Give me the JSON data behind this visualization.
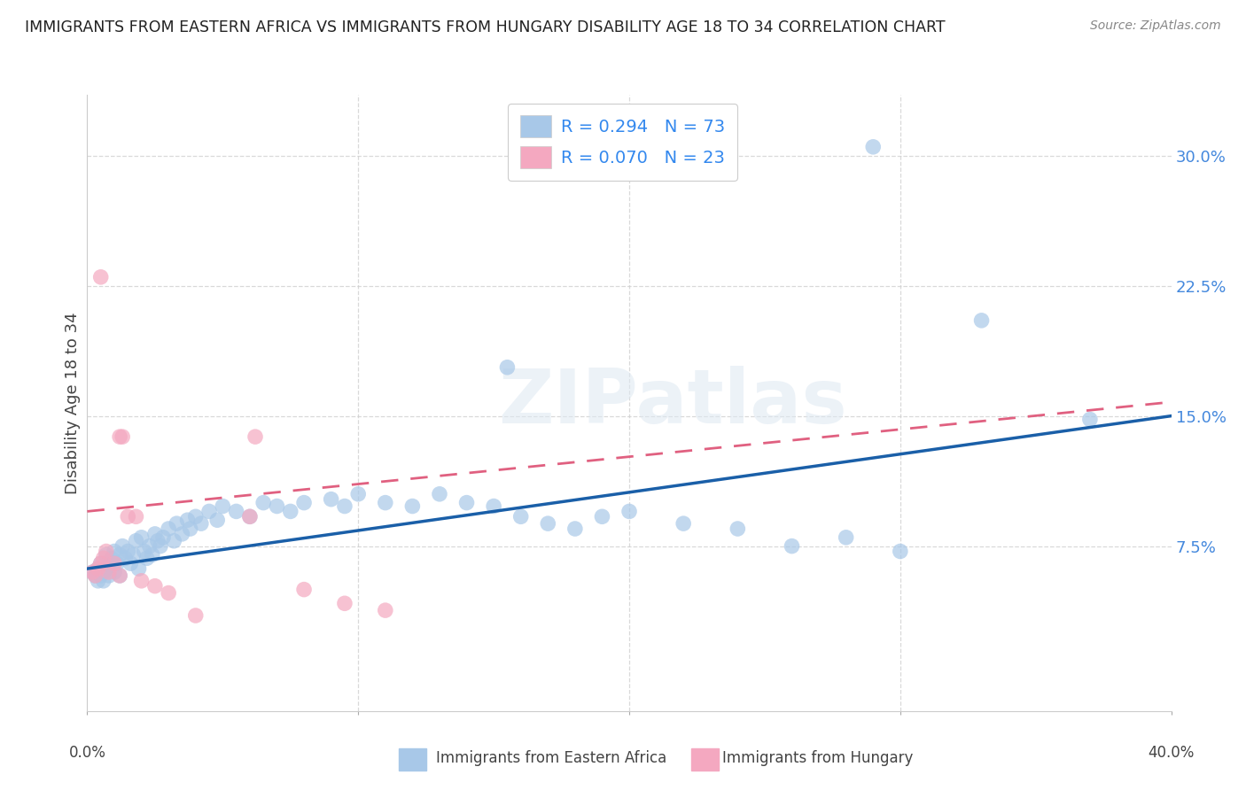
{
  "title": "IMMIGRANTS FROM EASTERN AFRICA VS IMMIGRANTS FROM HUNGARY DISABILITY AGE 18 TO 34 CORRELATION CHART",
  "source": "Source: ZipAtlas.com",
  "ylabel": "Disability Age 18 to 34",
  "ytick_labels": [
    "7.5%",
    "15.0%",
    "22.5%",
    "30.0%"
  ],
  "ytick_values": [
    0.075,
    0.15,
    0.225,
    0.3
  ],
  "xlim": [
    0.0,
    0.4
  ],
  "ylim": [
    -0.02,
    0.335
  ],
  "legend_blue_R": "R = 0.294",
  "legend_blue_N": "N = 73",
  "legend_pink_R": "R = 0.070",
  "legend_pink_N": "N = 23",
  "label_blue": "Immigrants from Eastern Africa",
  "label_pink": "Immigrants from Hungary",
  "blue_color": "#a8c8e8",
  "pink_color": "#f4a8c0",
  "blue_line_color": "#1a5fa8",
  "pink_line_color": "#e06080",
  "blue_scatter": [
    [
      0.002,
      0.06
    ],
    [
      0.003,
      0.058
    ],
    [
      0.004,
      0.055
    ],
    [
      0.004,
      0.062
    ],
    [
      0.005,
      0.065
    ],
    [
      0.005,
      0.058
    ],
    [
      0.006,
      0.06
    ],
    [
      0.006,
      0.055
    ],
    [
      0.007,
      0.07
    ],
    [
      0.007,
      0.062
    ],
    [
      0.008,
      0.065
    ],
    [
      0.008,
      0.058
    ],
    [
      0.009,
      0.068
    ],
    [
      0.01,
      0.072
    ],
    [
      0.01,
      0.06
    ],
    [
      0.011,
      0.065
    ],
    [
      0.012,
      0.07
    ],
    [
      0.012,
      0.058
    ],
    [
      0.013,
      0.075
    ],
    [
      0.014,
      0.068
    ],
    [
      0.015,
      0.072
    ],
    [
      0.016,
      0.065
    ],
    [
      0.017,
      0.07
    ],
    [
      0.018,
      0.078
    ],
    [
      0.019,
      0.062
    ],
    [
      0.02,
      0.08
    ],
    [
      0.021,
      0.072
    ],
    [
      0.022,
      0.068
    ],
    [
      0.023,
      0.075
    ],
    [
      0.024,
      0.07
    ],
    [
      0.025,
      0.082
    ],
    [
      0.026,
      0.078
    ],
    [
      0.027,
      0.075
    ],
    [
      0.028,
      0.08
    ],
    [
      0.03,
      0.085
    ],
    [
      0.032,
      0.078
    ],
    [
      0.033,
      0.088
    ],
    [
      0.035,
      0.082
    ],
    [
      0.037,
      0.09
    ],
    [
      0.038,
      0.085
    ],
    [
      0.04,
      0.092
    ],
    [
      0.042,
      0.088
    ],
    [
      0.045,
      0.095
    ],
    [
      0.048,
      0.09
    ],
    [
      0.05,
      0.098
    ],
    [
      0.055,
      0.095
    ],
    [
      0.06,
      0.092
    ],
    [
      0.065,
      0.1
    ],
    [
      0.07,
      0.098
    ],
    [
      0.075,
      0.095
    ],
    [
      0.08,
      0.1
    ],
    [
      0.09,
      0.102
    ],
    [
      0.095,
      0.098
    ],
    [
      0.1,
      0.105
    ],
    [
      0.11,
      0.1
    ],
    [
      0.12,
      0.098
    ],
    [
      0.13,
      0.105
    ],
    [
      0.14,
      0.1
    ],
    [
      0.15,
      0.098
    ],
    [
      0.16,
      0.092
    ],
    [
      0.17,
      0.088
    ],
    [
      0.18,
      0.085
    ],
    [
      0.19,
      0.092
    ],
    [
      0.2,
      0.095
    ],
    [
      0.22,
      0.088
    ],
    [
      0.24,
      0.085
    ],
    [
      0.26,
      0.075
    ],
    [
      0.28,
      0.08
    ],
    [
      0.3,
      0.072
    ],
    [
      0.155,
      0.178
    ],
    [
      0.29,
      0.305
    ],
    [
      0.33,
      0.205
    ],
    [
      0.37,
      0.148
    ]
  ],
  "pink_scatter": [
    [
      0.002,
      0.06
    ],
    [
      0.003,
      0.058
    ],
    [
      0.004,
      0.062
    ],
    [
      0.005,
      0.065
    ],
    [
      0.006,
      0.068
    ],
    [
      0.007,
      0.072
    ],
    [
      0.008,
      0.06
    ],
    [
      0.01,
      0.065
    ],
    [
      0.012,
      0.058
    ],
    [
      0.015,
      0.092
    ],
    [
      0.018,
      0.092
    ],
    [
      0.02,
      0.055
    ],
    [
      0.025,
      0.052
    ],
    [
      0.03,
      0.048
    ],
    [
      0.06,
      0.092
    ],
    [
      0.062,
      0.138
    ],
    [
      0.005,
      0.23
    ],
    [
      0.012,
      0.138
    ],
    [
      0.013,
      0.138
    ],
    [
      0.08,
      0.05
    ],
    [
      0.095,
      0.042
    ],
    [
      0.11,
      0.038
    ],
    [
      0.04,
      0.035
    ]
  ],
  "watermark_text": "ZIPatlas",
  "background_color": "#ffffff",
  "grid_color": "#d0d0d0"
}
